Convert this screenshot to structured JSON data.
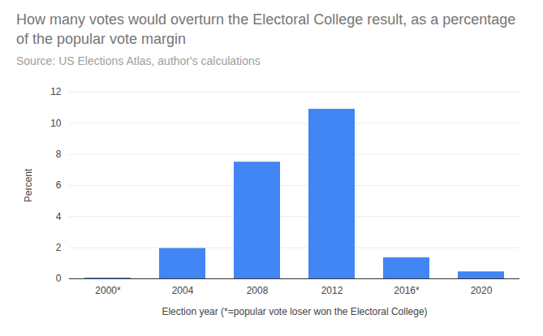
{
  "chart_data": {
    "type": "bar",
    "title": "How many votes would overturn the Electoral College result, as a percentage of the popular vote margin",
    "subtitle": "Source: US Elections Atlas, author's calculations",
    "xlabel": "Election year (*=popular vote loser won the Electoral College)",
    "ylabel": "Percent",
    "categories": [
      "2000*",
      "2004",
      "2008",
      "2012",
      "2016*",
      "2020"
    ],
    "values": [
      0.05,
      1.95,
      7.5,
      10.9,
      1.35,
      0.45
    ],
    "color": "#4285f4",
    "ylim": [
      0,
      12
    ],
    "yticks": [
      0,
      2,
      4,
      6,
      8,
      10,
      12
    ],
    "grid": true
  }
}
